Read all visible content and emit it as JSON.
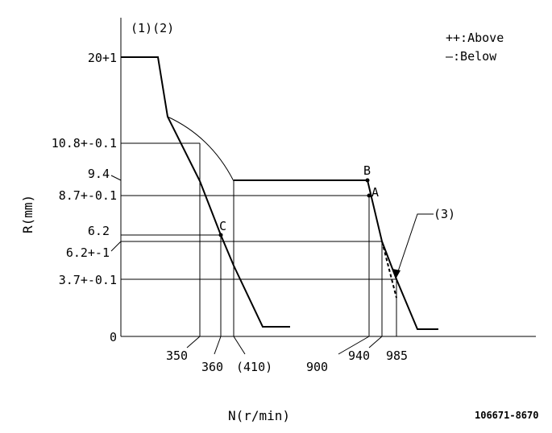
{
  "header": {
    "note": "(1)(2)"
  },
  "legend": {
    "above": "++:Above",
    "below": "—:Below"
  },
  "axes": {
    "x_label": "N(r/min)",
    "y_label": "R(mm)"
  },
  "y_ticks": [
    "20+1",
    "10.8+-0.1",
    "9.4",
    "8.7+-0.1",
    "6.2",
    "6.2+-1",
    "3.7+-0.1",
    "0"
  ],
  "x_ticks": [
    "350",
    "360",
    "(410)",
    "900",
    "940",
    "985"
  ],
  "points": {
    "a": "A",
    "b": "B",
    "c": "C"
  },
  "callout": "(3)",
  "ref_number": "106671-8670"
}
